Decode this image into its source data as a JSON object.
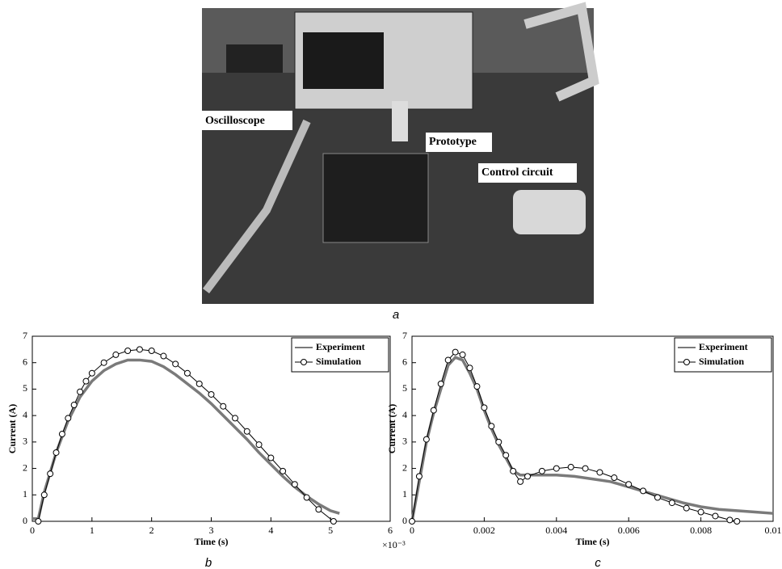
{
  "figure": {
    "photo": {
      "labels": [
        "Oscilloscope",
        "Prototype",
        "Control circuit"
      ],
      "caption": "a"
    }
  },
  "chart_data": [
    {
      "type": "line",
      "caption": "b",
      "xlabel": "Time (s)",
      "ylabel": "Current (A)",
      "x_exponent_label": "×10⁻³",
      "xlim": [
        0,
        6
      ],
      "xticks": [
        0,
        1,
        2,
        3,
        4,
        5,
        6
      ],
      "ylim": [
        0,
        7
      ],
      "yticks": [
        0,
        1,
        2,
        3,
        4,
        5,
        6,
        7
      ],
      "grid": false,
      "legend": "top-right",
      "series": [
        {
          "name": "Experiment",
          "color": "#7a7a7a",
          "marker": "none",
          "x": [
            0,
            0.1,
            0.2,
            0.4,
            0.6,
            0.8,
            1.0,
            1.2,
            1.4,
            1.6,
            1.8,
            2.0,
            2.2,
            2.4,
            2.6,
            2.8,
            3.0,
            3.2,
            3.4,
            3.6,
            3.8,
            4.0,
            4.2,
            4.4,
            4.6,
            4.8,
            5.0,
            5.15
          ],
          "values": [
            0.1,
            0.1,
            1.1,
            2.6,
            3.8,
            4.7,
            5.3,
            5.7,
            5.95,
            6.1,
            6.1,
            6.05,
            5.85,
            5.55,
            5.2,
            4.85,
            4.45,
            4.0,
            3.55,
            3.1,
            2.6,
            2.15,
            1.7,
            1.3,
            0.95,
            0.65,
            0.4,
            0.3
          ]
        },
        {
          "name": "Simulation",
          "color": "#000000",
          "marker": "circle",
          "x": [
            0.1,
            0.2,
            0.3,
            0.4,
            0.5,
            0.6,
            0.7,
            0.8,
            0.9,
            1.0,
            1.2,
            1.4,
            1.6,
            1.8,
            2.0,
            2.2,
            2.4,
            2.6,
            2.8,
            3.0,
            3.2,
            3.4,
            3.6,
            3.8,
            4.0,
            4.2,
            4.4,
            4.6,
            4.8,
            5.05
          ],
          "values": [
            0,
            1.0,
            1.8,
            2.6,
            3.3,
            3.9,
            4.4,
            4.9,
            5.3,
            5.6,
            6.0,
            6.3,
            6.45,
            6.5,
            6.45,
            6.25,
            5.95,
            5.6,
            5.2,
            4.8,
            4.35,
            3.9,
            3.4,
            2.9,
            2.4,
            1.9,
            1.4,
            0.9,
            0.45,
            0
          ]
        }
      ]
    },
    {
      "type": "line",
      "caption": "c",
      "xlabel": "Time (s)",
      "ylabel": "Current (A)",
      "xlim": [
        0,
        0.01
      ],
      "xticks": [
        0,
        0.002,
        0.004,
        0.006,
        0.008,
        0.01
      ],
      "ylim": [
        0,
        7
      ],
      "yticks": [
        0,
        1,
        2,
        3,
        4,
        5,
        6,
        7
      ],
      "grid": false,
      "legend": "top-right",
      "series": [
        {
          "name": "Experiment",
          "color": "#7a7a7a",
          "marker": "none",
          "x": [
            0,
            0.0002,
            0.0004,
            0.0006,
            0.0008,
            0.001,
            0.0012,
            0.0014,
            0.0016,
            0.0018,
            0.002,
            0.0022,
            0.0024,
            0.0026,
            0.0028,
            0.003,
            0.0035,
            0.004,
            0.0045,
            0.005,
            0.0055,
            0.006,
            0.0065,
            0.007,
            0.0075,
            0.008,
            0.0085,
            0.009,
            0.0095,
            0.01
          ],
          "values": [
            0,
            1.5,
            3.0,
            4.1,
            5.0,
            5.9,
            6.2,
            6.1,
            5.6,
            5.0,
            4.2,
            3.5,
            2.9,
            2.4,
            1.9,
            1.75,
            1.75,
            1.75,
            1.7,
            1.6,
            1.5,
            1.3,
            1.1,
            0.9,
            0.7,
            0.55,
            0.45,
            0.4,
            0.35,
            0.3
          ]
        },
        {
          "name": "Simulation",
          "color": "#000000",
          "marker": "circle",
          "x": [
            0,
            0.0002,
            0.0004,
            0.0006,
            0.0008,
            0.001,
            0.0012,
            0.0014,
            0.0016,
            0.0018,
            0.002,
            0.0022,
            0.0024,
            0.0026,
            0.0028,
            0.003,
            0.0032,
            0.0036,
            0.004,
            0.0044,
            0.0048,
            0.0052,
            0.0056,
            0.006,
            0.0064,
            0.0068,
            0.0072,
            0.0076,
            0.008,
            0.0084,
            0.0088,
            0.009
          ],
          "values": [
            0,
            1.7,
            3.1,
            4.2,
            5.2,
            6.1,
            6.4,
            6.3,
            5.8,
            5.1,
            4.3,
            3.6,
            3.0,
            2.5,
            1.9,
            1.5,
            1.7,
            1.9,
            2.0,
            2.05,
            2.0,
            1.85,
            1.65,
            1.4,
            1.15,
            0.9,
            0.7,
            0.5,
            0.35,
            0.2,
            0.05,
            0
          ]
        }
      ]
    }
  ]
}
